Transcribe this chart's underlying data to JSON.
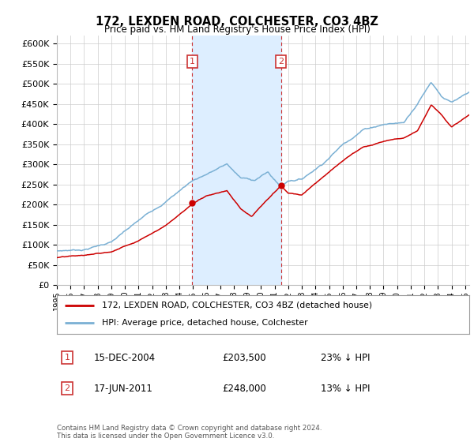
{
  "title": "172, LEXDEN ROAD, COLCHESTER, CO3 4BZ",
  "subtitle": "Price paid vs. HM Land Registry's House Price Index (HPI)",
  "hpi_color": "#7ab0d4",
  "price_color": "#cc0000",
  "bg_color": "#ffffff",
  "grid_color": "#cccccc",
  "transaction1_date": "15-DEC-2004",
  "transaction1_price": 203500,
  "transaction1_hpi": "23%",
  "transaction1_year": 2004.95,
  "transaction2_date": "17-JUN-2011",
  "transaction2_price": 248000,
  "transaction2_hpi": "13%",
  "transaction2_year": 2011.46,
  "legend_label1": "172, LEXDEN ROAD, COLCHESTER, CO3 4BZ (detached house)",
  "legend_label2": "HPI: Average price, detached house, Colchester",
  "footer": "Contains HM Land Registry data © Crown copyright and database right 2024.\nThis data is licensed under the Open Government Licence v3.0.",
  "xlim_start": 1995.0,
  "xlim_end": 2025.3,
  "ylim_max": 620000,
  "span_color": "#ddeeff",
  "vline_color": "#cc3333"
}
